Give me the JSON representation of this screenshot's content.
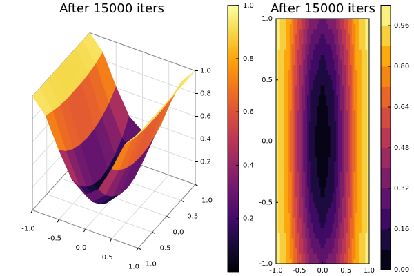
{
  "chart_data": [
    {
      "type": "surface3d",
      "title": "After 15000 iters",
      "x": [
        -1,
        -0.75,
        -0.5,
        -0.25,
        0,
        0.25,
        0.5,
        0.75,
        1
      ],
      "y": [
        -1,
        -0.75,
        -0.5,
        -0.25,
        0,
        0.25,
        0.5,
        0.75,
        1
      ],
      "z": [
        [
          1,
          0.87,
          0.61,
          0.39,
          0.3,
          0.39,
          0.61,
          0.87,
          1
        ],
        [
          1,
          0.84,
          0.53,
          0.27,
          0.17,
          0.27,
          0.53,
          0.84,
          1
        ],
        [
          1,
          0.82,
          0.48,
          0.19,
          0.08,
          0.19,
          0.48,
          0.82,
          1
        ],
        [
          1,
          0.81,
          0.45,
          0.14,
          0.02,
          0.14,
          0.45,
          0.81,
          1
        ],
        [
          1,
          0.81,
          0.44,
          0.12,
          0,
          0.12,
          0.44,
          0.81,
          1
        ],
        [
          1,
          0.81,
          0.45,
          0.14,
          0.02,
          0.14,
          0.45,
          0.81,
          1
        ],
        [
          1,
          0.82,
          0.48,
          0.19,
          0.08,
          0.19,
          0.48,
          0.82,
          1
        ],
        [
          1,
          0.84,
          0.53,
          0.27,
          0.17,
          0.27,
          0.53,
          0.84,
          1
        ],
        [
          1,
          0.87,
          0.61,
          0.39,
          0.3,
          0.39,
          0.61,
          0.87,
          1
        ]
      ],
      "xlim": [
        -1,
        1
      ],
      "ylim": [
        -1,
        1
      ],
      "zlim": [
        0,
        1
      ],
      "xticks": [
        {
          "value": -1,
          "label": "-1.0"
        },
        -0.5,
        {
          "value": 0,
          "label": "0.0"
        },
        0.5,
        {
          "value": 1,
          "label": "1.0"
        }
      ],
      "yticks": [
        {
          "value": -1,
          "label": "-1.0"
        },
        -0.5,
        {
          "value": 0,
          "label": "0.0"
        },
        0.5,
        {
          "value": 1,
          "label": "1.0"
        }
      ],
      "zticks": [
        0.2,
        0.4,
        0.6,
        0.8,
        {
          "value": 1,
          "label": "1.0"
        }
      ],
      "colormap": "inferno",
      "clim": [
        0,
        1
      ],
      "colorbar_ticks": [
        0.2,
        0.4,
        0.6,
        0.8,
        {
          "value": 1,
          "label": "1.0"
        }
      ],
      "grid": true
    },
    {
      "type": "contour",
      "title": "After 15000 iters",
      "x": [
        -1,
        -0.75,
        -0.5,
        -0.25,
        0,
        0.25,
        0.5,
        0.75,
        1
      ],
      "y": [
        -1,
        -0.75,
        -0.5,
        -0.25,
        0,
        0.25,
        0.5,
        0.75,
        1
      ],
      "z": [
        [
          1,
          0.87,
          0.61,
          0.39,
          0.3,
          0.39,
          0.61,
          0.87,
          1
        ],
        [
          1,
          0.84,
          0.53,
          0.27,
          0.17,
          0.27,
          0.53,
          0.84,
          1
        ],
        [
          1,
          0.82,
          0.48,
          0.19,
          0.08,
          0.19,
          0.48,
          0.82,
          1
        ],
        [
          1,
          0.81,
          0.45,
          0.14,
          0.02,
          0.14,
          0.45,
          0.81,
          1
        ],
        [
          1,
          0.81,
          0.44,
          0.12,
          0,
          0.12,
          0.44,
          0.81,
          1
        ],
        [
          1,
          0.81,
          0.45,
          0.14,
          0.02,
          0.14,
          0.45,
          0.81,
          1
        ],
        [
          1,
          0.82,
          0.48,
          0.19,
          0.08,
          0.19,
          0.48,
          0.82,
          1
        ],
        [
          1,
          0.84,
          0.53,
          0.27,
          0.17,
          0.27,
          0.53,
          0.84,
          1
        ],
        [
          1,
          0.87,
          0.61,
          0.39,
          0.3,
          0.39,
          0.61,
          0.87,
          1
        ]
      ],
      "xlim": [
        -1,
        1
      ],
      "ylim": [
        -1,
        1
      ],
      "xticks": [
        {
          "value": -1,
          "label": "-1.0"
        },
        -0.5,
        {
          "value": 0,
          "label": "0.0"
        },
        0.5,
        {
          "value": 1,
          "label": "1.0"
        }
      ],
      "yticks": [
        {
          "value": -1,
          "label": "-1.0"
        },
        -0.5,
        {
          "value": 0,
          "label": "0.0"
        },
        0.5,
        {
          "value": 1,
          "label": "1.0"
        }
      ],
      "levels": [
        0,
        0.08,
        0.16,
        0.24,
        0.32,
        0.4,
        0.48,
        0.56,
        0.64,
        0.72,
        0.8,
        0.88,
        0.96,
        1.04
      ],
      "colormap": "inferno",
      "clim": [
        0,
        1.04
      ],
      "colorbar_ticks": [
        {
          "value": 0,
          "label": "0.00"
        },
        {
          "value": 0.16,
          "label": "0.16"
        },
        {
          "value": 0.32,
          "label": "0.32"
        },
        {
          "value": 0.48,
          "label": "0.48"
        },
        {
          "value": 0.64,
          "label": "0.64"
        },
        {
          "value": 0.8,
          "label": "0.80"
        },
        {
          "value": 0.96,
          "label": "0.96"
        }
      ]
    }
  ]
}
